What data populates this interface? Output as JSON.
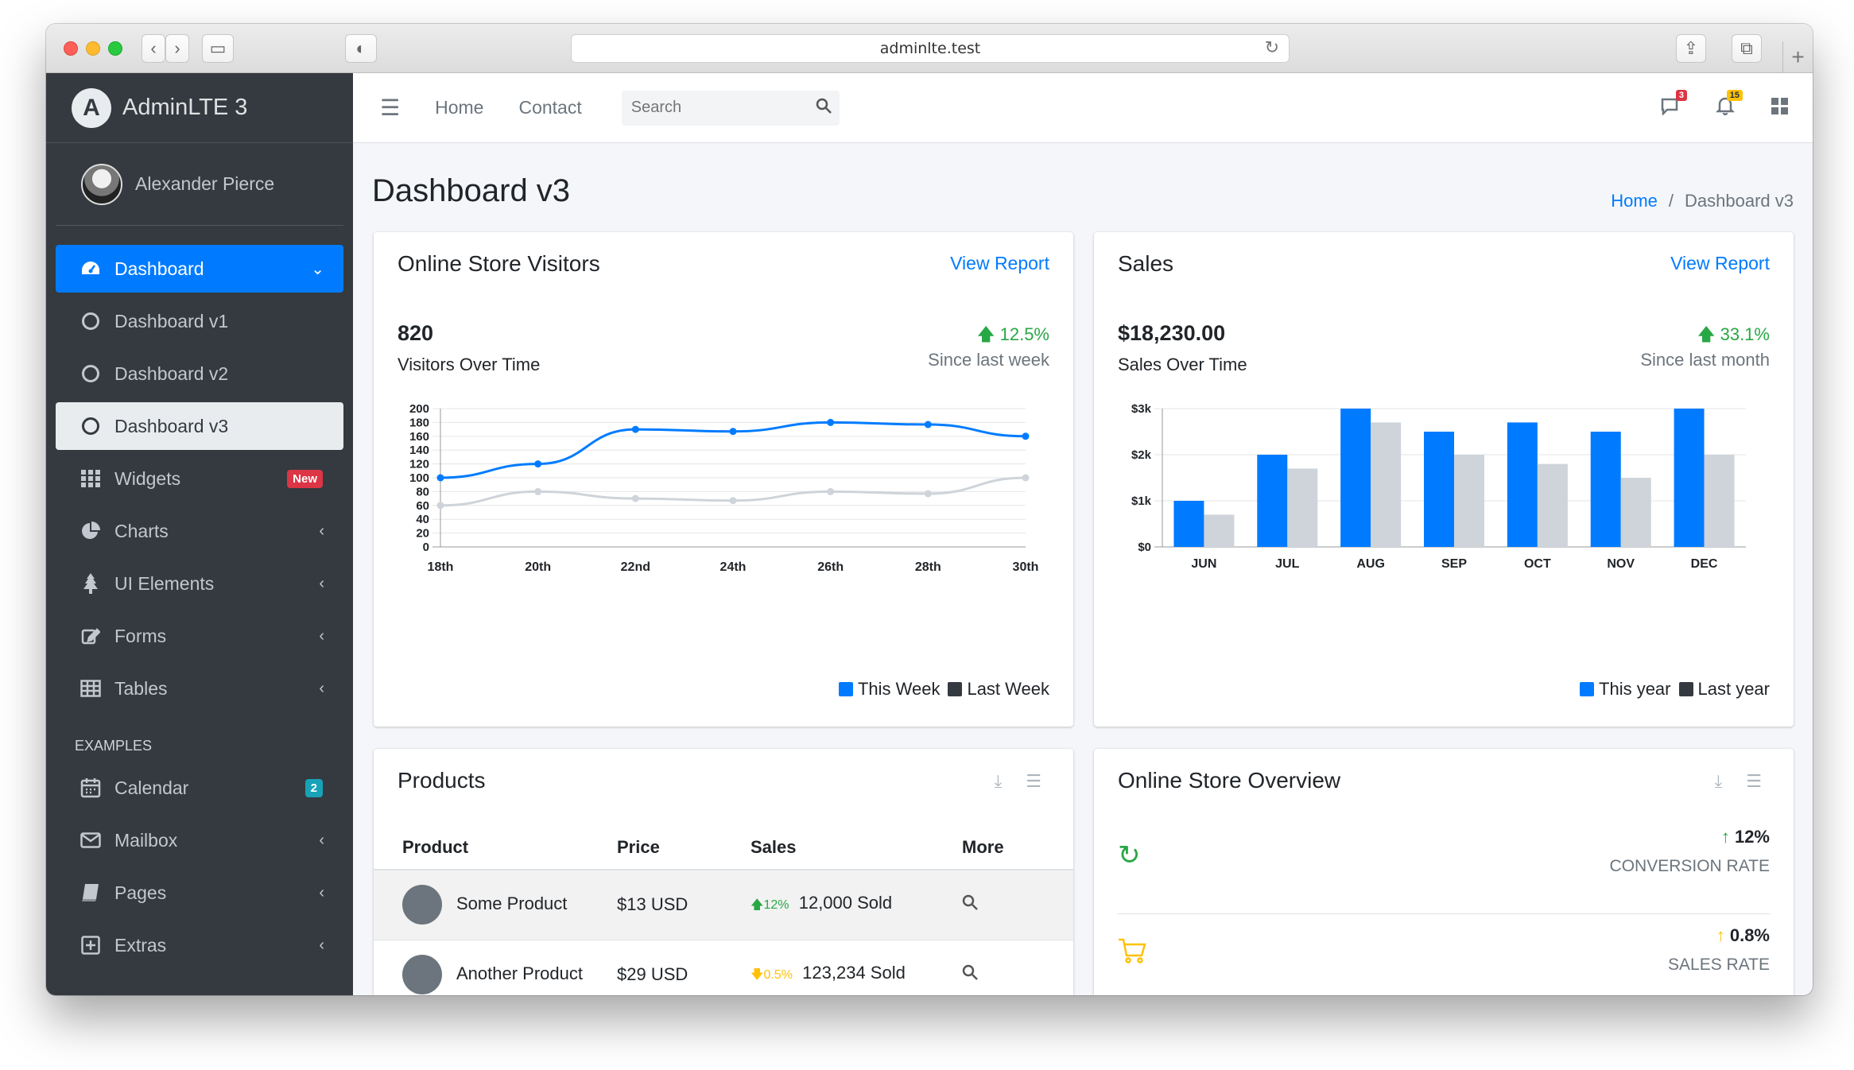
{
  "browser": {
    "url": "adminlte.test"
  },
  "brand": {
    "name": "AdminLTE 3"
  },
  "user": {
    "name": "Alexander Pierce"
  },
  "sidebar": {
    "items": [
      {
        "label": "Dashboard",
        "icon": "tachometer-icon"
      },
      {
        "label": "Dashboard v1",
        "icon": "circle-icon"
      },
      {
        "label": "Dashboard v2",
        "icon": "circle-icon"
      },
      {
        "label": "Dashboard v3",
        "icon": "circle-icon"
      },
      {
        "label": "Widgets",
        "icon": "grid-icon",
        "badge": "New"
      },
      {
        "label": "Charts",
        "icon": "pie-chart-icon"
      },
      {
        "label": "UI Elements",
        "icon": "tree-icon"
      },
      {
        "label": "Forms",
        "icon": "edit-icon"
      },
      {
        "label": "Tables",
        "icon": "table-icon"
      }
    ],
    "section_header": "EXAMPLES",
    "examples": [
      {
        "label": "Calendar",
        "icon": "calendar-icon",
        "badge": "2"
      },
      {
        "label": "Mailbox",
        "icon": "envelope-icon"
      },
      {
        "label": "Pages",
        "icon": "book-icon"
      },
      {
        "label": "Extras",
        "icon": "plus-square-icon"
      }
    ]
  },
  "topbar": {
    "links": [
      "Home",
      "Contact"
    ],
    "search_placeholder": "Search",
    "messages_count": "3",
    "notifications_count": "15"
  },
  "header": {
    "title": "Dashboard v3",
    "breadcrumb_home": "Home",
    "breadcrumb_current": "Dashboard v3"
  },
  "visitors": {
    "title": "Online Store Visitors",
    "link": "View Report",
    "value": "820",
    "label": "Visitors Over Time",
    "change": "12.5%",
    "since": "Since last week",
    "legend": [
      "This Week",
      "Last Week"
    ]
  },
  "sales": {
    "title": "Sales",
    "link": "View Report",
    "value": "$18,230.00",
    "label": "Sales Over Time",
    "change": "33.1%",
    "since": "Since last month",
    "legend": [
      "This year",
      "Last year"
    ]
  },
  "products": {
    "title": "Products",
    "columns": [
      "Product",
      "Price",
      "Sales",
      "More"
    ],
    "rows": [
      {
        "name": "Some Product",
        "price": "$13 USD",
        "change": "12%",
        "trend": "up",
        "sold": "12,000 Sold"
      },
      {
        "name": "Another Product",
        "price": "$29 USD",
        "change": "0.5%",
        "trend": "down",
        "sold": "123,234 Sold"
      }
    ]
  },
  "overview": {
    "title": "Online Store Overview",
    "rows": [
      {
        "value": "12%",
        "label": "CONVERSION RATE",
        "icon": "refresh-icon"
      },
      {
        "value": "0.8%",
        "label": "SALES RATE",
        "icon": "cart-icon"
      }
    ]
  },
  "colors": {
    "primary": "#007bff",
    "secondary": "#ced4da",
    "sidebar": "#343a40",
    "success": "#28a745",
    "warning": "#ffc107"
  },
  "chart_data": [
    {
      "type": "line",
      "x": [
        "18th",
        "20th",
        "22nd",
        "24th",
        "26th",
        "28th",
        "30th"
      ],
      "ylim": [
        0,
        200
      ],
      "yticks": [
        0,
        20,
        40,
        60,
        80,
        100,
        120,
        140,
        160,
        180,
        200
      ],
      "series": [
        {
          "name": "This Week",
          "values": [
            100,
            120,
            170,
            167,
            180,
            177,
            160
          ],
          "color": "#007bff"
        },
        {
          "name": "Last Week",
          "values": [
            60,
            80,
            70,
            67,
            80,
            77,
            100
          ],
          "color": "#ced4da"
        }
      ],
      "grid": true
    },
    {
      "type": "bar",
      "categories": [
        "JUN",
        "JUL",
        "AUG",
        "SEP",
        "OCT",
        "NOV",
        "DEC"
      ],
      "ylim": [
        0,
        3000
      ],
      "yticks": [
        {
          "v": 0,
          "label": "$0"
        },
        {
          "v": 1000,
          "label": "$1k"
        },
        {
          "v": 2000,
          "label": "$2k"
        },
        {
          "v": 3000,
          "label": "$3k"
        }
      ],
      "series": [
        {
          "name": "This year",
          "values": [
            1000,
            2000,
            3000,
            2500,
            2700,
            2500,
            3000
          ],
          "color": "#007bff"
        },
        {
          "name": "Last year",
          "values": [
            700,
            1700,
            2700,
            2000,
            1800,
            1500,
            2000
          ],
          "color": "#ced4da"
        }
      ],
      "grid": true
    }
  ]
}
